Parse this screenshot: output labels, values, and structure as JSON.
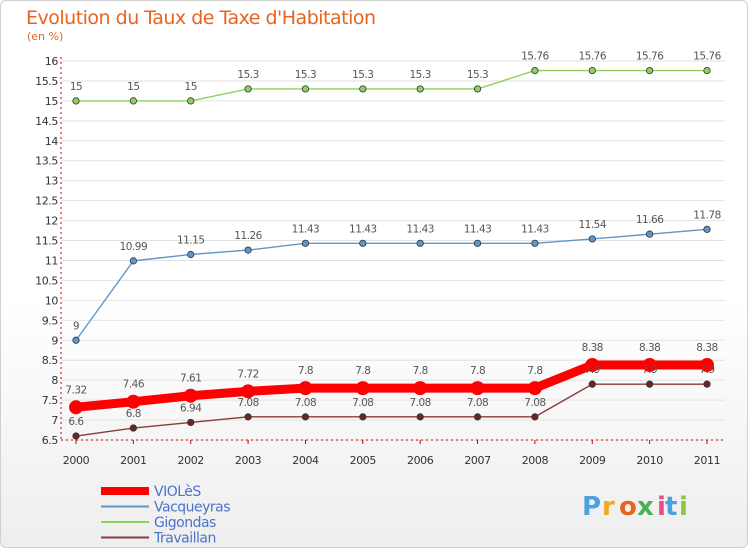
{
  "chart_data": {
    "type": "line",
    "title": "Evolution du Taux de Taxe d'Habitation",
    "subtitle": "(en %)",
    "x": [
      "2000",
      "2001",
      "2002",
      "2003",
      "2004",
      "2005",
      "2006",
      "2007",
      "2008",
      "2009",
      "2010",
      "2011"
    ],
    "ylim": [
      6.5,
      16
    ],
    "yticks": [
      "6.5",
      "7",
      "7.5",
      "8",
      "8.5",
      "9",
      "9.5",
      "10",
      "10.5",
      "11",
      "11.5",
      "12",
      "12.5",
      "13",
      "13.5",
      "14",
      "14.5",
      "15",
      "15.5",
      "16"
    ],
    "grid": "horizontal",
    "legend_position": "bottom-left",
    "series": [
      {
        "name": "Gigondas",
        "color": "#8fd15f",
        "point_color": "#8fd15f",
        "values": [
          15,
          15,
          15,
          15.3,
          15.3,
          15.3,
          15.3,
          15.3,
          15.76,
          15.76,
          15.76,
          15.76
        ],
        "labels": [
          "15",
          "15",
          "15",
          "15.3",
          "15.3",
          "15.3",
          "15.3",
          "15.3",
          "15.76",
          "15.76",
          "15.76",
          "15.76"
        ]
      },
      {
        "name": "Vacqueyras",
        "color": "#5d96cb",
        "point_color": "#5d96cb",
        "values": [
          9,
          10.99,
          11.15,
          11.26,
          11.43,
          11.43,
          11.43,
          11.43,
          11.43,
          11.54,
          11.66,
          11.78
        ],
        "labels": [
          "9",
          "10.99",
          "11.15",
          "11.26",
          "11.43",
          "11.43",
          "11.43",
          "11.43",
          "11.43",
          "11.54",
          "11.66",
          "11.78"
        ]
      },
      {
        "name": "Travaillan",
        "color": "#8a3b3b",
        "point_color": "#6a2525",
        "values": [
          6.6,
          6.8,
          6.94,
          7.08,
          7.08,
          7.08,
          7.08,
          7.08,
          7.08,
          7.9,
          7.9,
          7.9
        ],
        "labels": [
          "6.6",
          "6.8",
          "6.94",
          "7.08",
          "7.08",
          "7.08",
          "7.08",
          "7.08",
          "7.08",
          "7.9",
          "7.9",
          "7.9"
        ]
      },
      {
        "name": "VIOLèS",
        "color": "#ff0000",
        "point_color": "#ff0000",
        "thick": true,
        "values": [
          7.32,
          7.46,
          7.61,
          7.72,
          7.8,
          7.8,
          7.8,
          7.8,
          7.8,
          8.38,
          8.38,
          8.38
        ],
        "labels": [
          "7.32",
          "7.46",
          "7.61",
          "7.72",
          "7.8",
          "7.8",
          "7.8",
          "7.8",
          "7.8",
          "8.38",
          "8.38",
          "8.38"
        ]
      }
    ],
    "legend": [
      "VIOLèS",
      "Vacqueyras",
      "Gigondas",
      "Travaillan"
    ]
  },
  "logo": {
    "letters": [
      "P",
      "r",
      "o",
      "x",
      "i",
      "t",
      "i"
    ],
    "colors": [
      "#4aa3df",
      "#f0a81e",
      "#e8641e",
      "#4caf50",
      "#e84a8a",
      "#4aa3df",
      "#8fc63c"
    ]
  }
}
